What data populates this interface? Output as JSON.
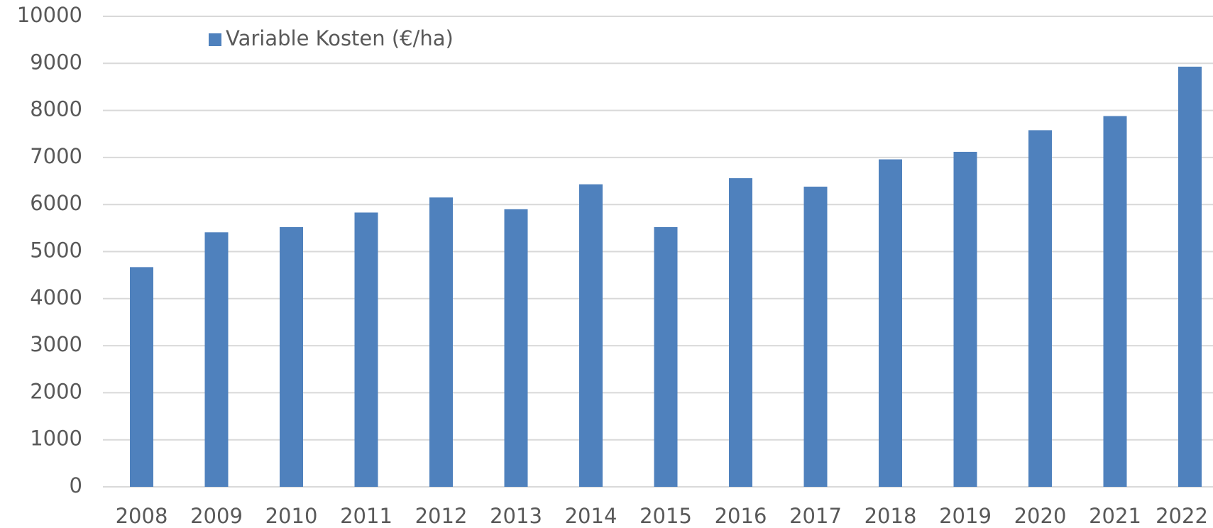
{
  "chart_data": {
    "type": "bar",
    "categories": [
      "2008",
      "2009",
      "2010",
      "2011",
      "2012",
      "2013",
      "2014",
      "2015",
      "2016",
      "2017",
      "2018",
      "2019",
      "2020",
      "2021",
      "2022"
    ],
    "series": [
      {
        "name": "Variable Kosten (€/ha)",
        "color": "#4f81bd",
        "values": [
          4670,
          5410,
          5520,
          5830,
          6150,
          5900,
          6430,
          5520,
          6560,
          6380,
          6960,
          7120,
          7580,
          7880,
          8930
        ]
      }
    ],
    "ylim": [
      0,
      10000
    ],
    "yticks": [
      0,
      1000,
      2000,
      3000,
      4000,
      5000,
      6000,
      7000,
      8000,
      9000,
      10000
    ],
    "grid": true,
    "legend": "top-left"
  }
}
